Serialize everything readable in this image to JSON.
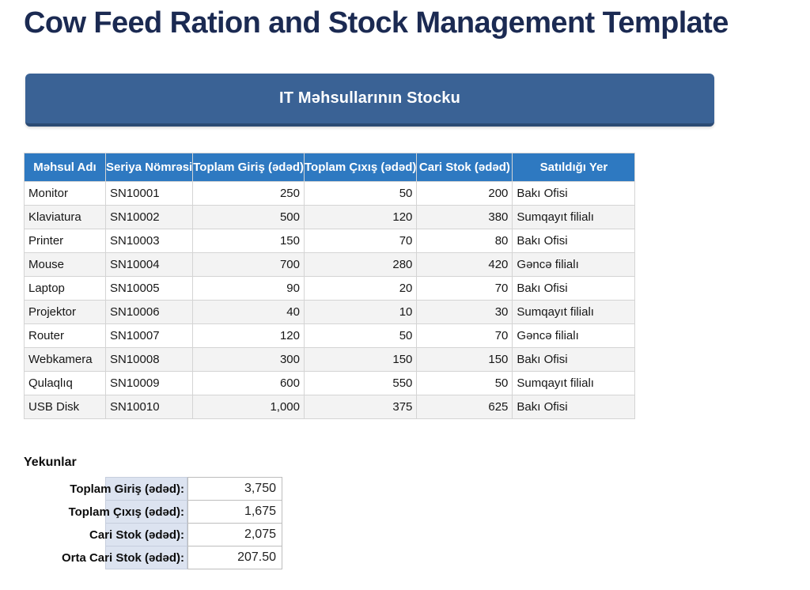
{
  "page": {
    "title": "Cow Feed Ration and Stock Management Template"
  },
  "banner": {
    "title": "IT Məhsullarının Stocku"
  },
  "stock_table": {
    "columns": [
      "Məhsul Adı",
      "Seriya Nömrəsi",
      "Toplam Giriş (ədəd)",
      "Toplam Çıxış (ədəd)",
      "Cari Stok (ədəd)",
      "Satıldığı Yer"
    ],
    "rows": [
      [
        "Monitor",
        "SN10001",
        "250",
        "50",
        "200",
        "Bakı Ofisi"
      ],
      [
        "Klaviatura",
        "SN10002",
        "500",
        "120",
        "380",
        "Sumqayıt filialı"
      ],
      [
        "Printer",
        "SN10003",
        "150",
        "70",
        "80",
        "Bakı Ofisi"
      ],
      [
        "Mouse",
        "SN10004",
        "700",
        "280",
        "420",
        "Gəncə filialı"
      ],
      [
        "Laptop",
        "SN10005",
        "90",
        "20",
        "70",
        "Bakı Ofisi"
      ],
      [
        "Projektor",
        "SN10006",
        "40",
        "10",
        "30",
        "Sumqayıt filialı"
      ],
      [
        "Router",
        "SN10007",
        "120",
        "50",
        "70",
        "Gəncə filialı"
      ],
      [
        "Webkamera",
        "SN10008",
        "300",
        "150",
        "150",
        "Bakı Ofisi"
      ],
      [
        "Qulaqlıq",
        "SN10009",
        "600",
        "550",
        "50",
        "Sumqayıt filialı"
      ],
      [
        "USB Disk",
        "SN10010",
        "1,000",
        "375",
        "625",
        "Bakı Ofisi"
      ]
    ]
  },
  "totals": {
    "heading": "Yekunlar",
    "rows": [
      {
        "label": "Toplam Giriş (ədəd):",
        "value": "3,750"
      },
      {
        "label": "Toplam Çıxış (ədəd):",
        "value": "1,675"
      },
      {
        "label": "Cari Stok (ədəd):",
        "value": "2,075"
      },
      {
        "label": "Orta Cari Stok (ədəd):",
        "value": "207.50"
      }
    ]
  },
  "colors": {
    "title_text": "#1b2a52",
    "banner_bg": "#3a6295",
    "banner_border_bottom": "#2b4a73",
    "table_header_bg": "#2e79c1",
    "table_header_text": "#ffffff",
    "row_alt_bg": "#f3f3f3",
    "cell_border": "#d4d4d4",
    "totals_label_bg": "#dce3f0",
    "totals_value_border": "#bdbdbd"
  }
}
